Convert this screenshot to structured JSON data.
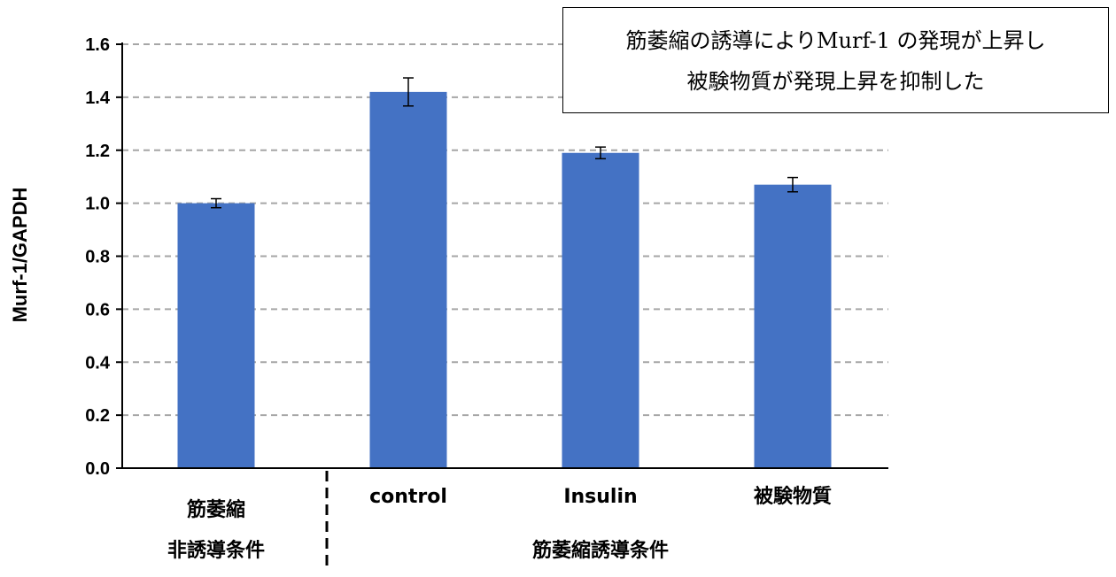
{
  "chart_data": {
    "type": "bar",
    "ylabel": "Murf-1/GAPDH",
    "ylim": [
      0,
      1.6
    ],
    "yticks": [
      "0.0",
      "0.2",
      "0.4",
      "0.6",
      "0.8",
      "1.0",
      "1.2",
      "1.4",
      "1.6"
    ],
    "grid": true,
    "bar_color": "#4472C4",
    "categories": [
      {
        "lines": [
          "筋萎縮",
          "非誘導条件"
        ],
        "value": 1.0,
        "error": 0.017
      },
      {
        "lines": [
          "control"
        ],
        "value": 1.42,
        "error": 0.053
      },
      {
        "lines": [
          "Insulin"
        ],
        "value": 1.19,
        "error": 0.022
      },
      {
        "lines": [
          "被験物質"
        ],
        "value": 1.07,
        "error": 0.027
      }
    ],
    "group_label": "筋萎縮誘導条件",
    "annotation": [
      "筋萎縮の誘導によりMurf-1 の発現が上昇し",
      "被験物質が発現上昇を抑制した"
    ]
  }
}
